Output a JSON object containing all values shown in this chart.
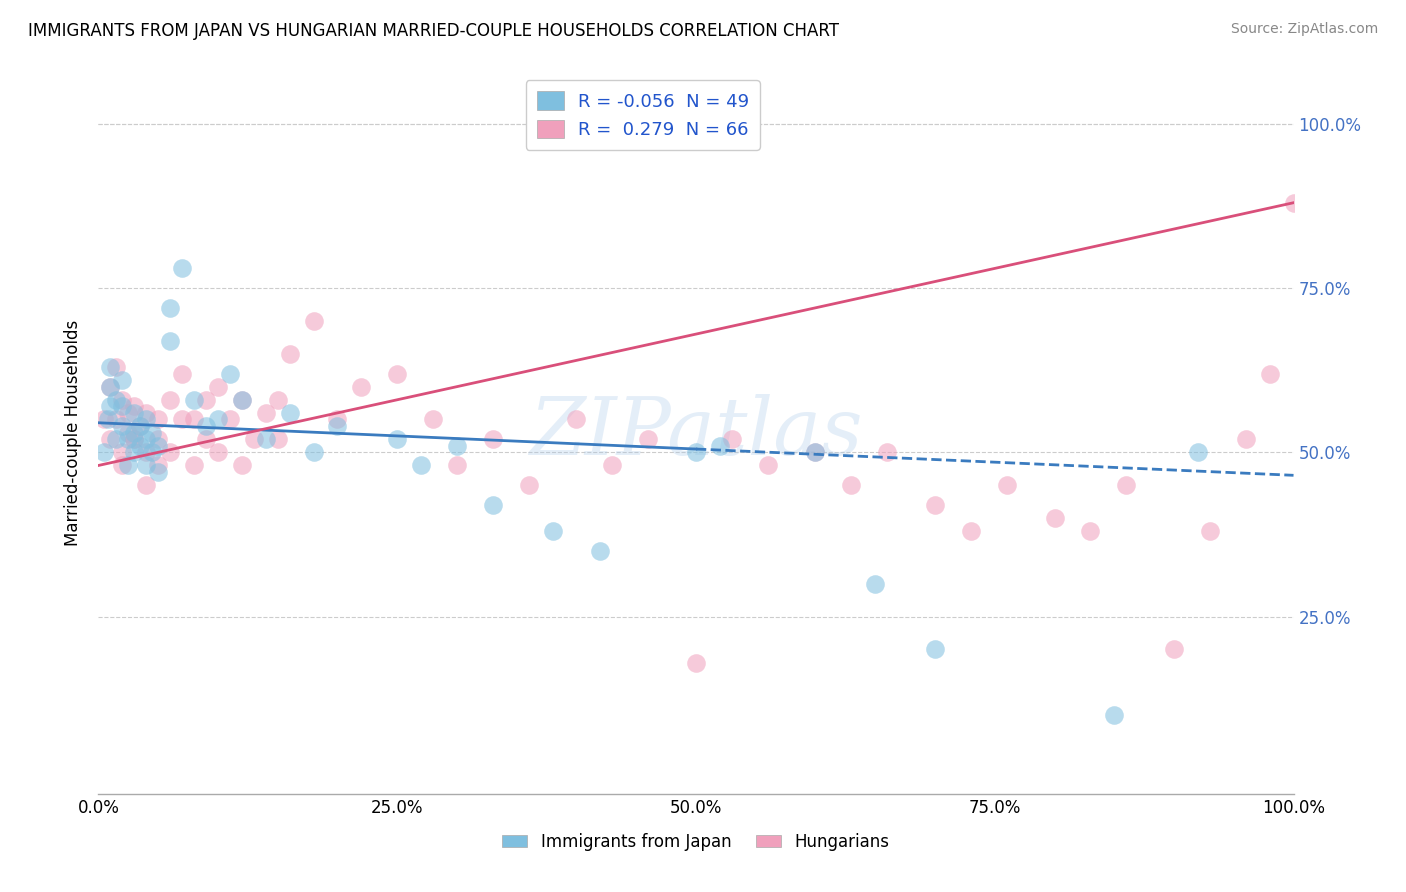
{
  "title": "IMMIGRANTS FROM JAPAN VS HUNGARIAN MARRIED-COUPLE HOUSEHOLDS CORRELATION CHART",
  "source": "Source: ZipAtlas.com",
  "ylabel": "Married-couple Households",
  "watermark": "ZIPatlas",
  "legend_labels": [
    "Immigrants from Japan",
    "Hungarians"
  ],
  "R_japan": -0.056,
  "N_japan": 49,
  "R_hungarian": 0.279,
  "N_hungarian": 66,
  "blue_color": "#7fbfdf",
  "pink_color": "#f0a0bc",
  "blue_line_color": "#3a7bbf",
  "pink_line_color": "#d94f7a",
  "blue_line_solid_end": 0.5,
  "xlim": [
    0.0,
    1.0
  ],
  "ylim": [
    -0.02,
    1.08
  ],
  "ytick_positions": [
    0.25,
    0.5,
    0.75,
    1.0
  ],
  "ytick_labels": [
    "25.0%",
    "50.0%",
    "75.0%",
    "100.0%"
  ],
  "xtick_positions": [
    0.0,
    0.25,
    0.5,
    0.75,
    1.0
  ],
  "xtick_labels": [
    "0.0%",
    "25.0%",
    "50.0%",
    "75.0%",
    "100.0%"
  ],
  "japan_x": [
    0.005,
    0.008,
    0.01,
    0.01,
    0.01,
    0.015,
    0.015,
    0.02,
    0.02,
    0.02,
    0.025,
    0.025,
    0.03,
    0.03,
    0.03,
    0.035,
    0.035,
    0.04,
    0.04,
    0.04,
    0.045,
    0.045,
    0.05,
    0.05,
    0.06,
    0.06,
    0.07,
    0.08,
    0.09,
    0.1,
    0.11,
    0.12,
    0.14,
    0.16,
    0.18,
    0.2,
    0.25,
    0.27,
    0.3,
    0.33,
    0.38,
    0.42,
    0.5,
    0.52,
    0.6,
    0.65,
    0.7,
    0.85,
    0.92
  ],
  "japan_y": [
    0.5,
    0.55,
    0.57,
    0.6,
    0.63,
    0.52,
    0.58,
    0.54,
    0.57,
    0.61,
    0.48,
    0.52,
    0.5,
    0.53,
    0.56,
    0.51,
    0.54,
    0.48,
    0.52,
    0.55,
    0.5,
    0.53,
    0.47,
    0.51,
    0.67,
    0.72,
    0.78,
    0.58,
    0.54,
    0.55,
    0.62,
    0.58,
    0.52,
    0.56,
    0.5,
    0.54,
    0.52,
    0.48,
    0.51,
    0.42,
    0.38,
    0.35,
    0.5,
    0.51,
    0.5,
    0.3,
    0.2,
    0.1,
    0.5
  ],
  "hungarian_x": [
    0.005,
    0.01,
    0.01,
    0.015,
    0.015,
    0.02,
    0.02,
    0.025,
    0.025,
    0.03,
    0.03,
    0.035,
    0.04,
    0.04,
    0.05,
    0.05,
    0.06,
    0.07,
    0.08,
    0.09,
    0.1,
    0.11,
    0.12,
    0.13,
    0.14,
    0.15,
    0.16,
    0.18,
    0.2,
    0.22,
    0.25,
    0.28,
    0.3,
    0.33,
    0.36,
    0.4,
    0.43,
    0.46,
    0.5,
    0.53,
    0.56,
    0.6,
    0.63,
    0.66,
    0.7,
    0.73,
    0.76,
    0.8,
    0.83,
    0.86,
    0.9,
    0.93,
    0.96,
    0.98,
    1.0,
    0.02,
    0.03,
    0.04,
    0.05,
    0.06,
    0.07,
    0.08,
    0.09,
    0.1,
    0.12,
    0.15
  ],
  "hungarian_y": [
    0.55,
    0.52,
    0.6,
    0.55,
    0.63,
    0.5,
    0.58,
    0.53,
    0.56,
    0.52,
    0.57,
    0.54,
    0.5,
    0.56,
    0.52,
    0.55,
    0.58,
    0.62,
    0.55,
    0.58,
    0.6,
    0.55,
    0.58,
    0.52,
    0.56,
    0.58,
    0.65,
    0.7,
    0.55,
    0.6,
    0.62,
    0.55,
    0.48,
    0.52,
    0.45,
    0.55,
    0.48,
    0.52,
    0.18,
    0.52,
    0.48,
    0.5,
    0.45,
    0.5,
    0.42,
    0.38,
    0.45,
    0.4,
    0.38,
    0.45,
    0.2,
    0.38,
    0.52,
    0.62,
    0.88,
    0.48,
    0.52,
    0.45,
    0.48,
    0.5,
    0.55,
    0.48,
    0.52,
    0.5,
    0.48,
    0.52
  ],
  "japan_line_x0": 0.0,
  "japan_line_y0": 0.545,
  "japan_line_x1": 1.0,
  "japan_line_y1": 0.465,
  "hungarian_line_x0": 0.0,
  "hungarian_line_y0": 0.48,
  "hungarian_line_x1": 1.0,
  "hungarian_line_y1": 0.88
}
